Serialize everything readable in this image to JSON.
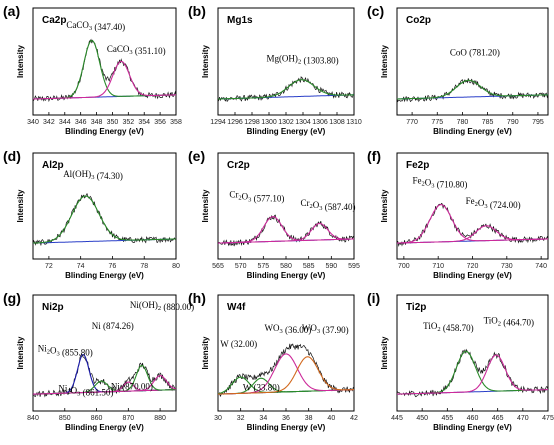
{
  "chart_data": [
    {
      "type": "line",
      "letter": "(a)",
      "element": "Ca2p",
      "xlabel": "Blinding Energy (eV)",
      "ylabel": "Intensity",
      "xlim": [
        340,
        358
      ],
      "xticks": [
        340,
        342,
        344,
        346,
        348,
        350,
        352,
        354,
        356,
        358
      ],
      "peaks": [
        {
          "pos": 347.4,
          "amp": 0.68,
          "w": 1.0,
          "color": "#2a8a2a"
        },
        {
          "pos": 351.1,
          "amp": 0.42,
          "w": 1.05,
          "color": "#cc2a9a"
        }
      ],
      "annotations": [
        {
          "text": "CaCO",
          "sub": "3",
          "val": " (347.40)",
          "x": 344.2,
          "y": 0.85
        },
        {
          "text": "CaCO",
          "sub": "3",
          "val": " (351.10)",
          "x": 349.3,
          "y": 0.56
        }
      ]
    },
    {
      "type": "line",
      "letter": "(b)",
      "element": "Mg1s",
      "xlabel": "Blinding Energy (eV)",
      "ylabel": "Intensity",
      "xlim": [
        1294,
        1310
      ],
      "xticks": [
        1294,
        1296,
        1298,
        1300,
        1302,
        1304,
        1306,
        1308,
        1310
      ],
      "peaks": [
        {
          "pos": 1303.8,
          "amp": 0.2,
          "w": 1.5,
          "color": "#2a8a2a"
        }
      ],
      "annotations": [
        {
          "text": "Mg(OH)",
          "sub": "2",
          "val": " (1303.80)",
          "x": 1299.7,
          "y": 0.45
        }
      ]
    },
    {
      "type": "line",
      "letter": "(c)",
      "element": "Co2p",
      "xlabel": "Blinding Energy (eV)",
      "ylabel": "Intensity",
      "xlim": [
        767,
        797
      ],
      "xticks": [
        770,
        775,
        780,
        785,
        790,
        795
      ],
      "peaks": [
        {
          "pos": 781.2,
          "amp": 0.2,
          "w": 2.4,
          "color": "#2a8a2a"
        }
      ],
      "annotations": [
        {
          "text": "CoO",
          "sub": "",
          "val": " (781.20)",
          "x": 777.5,
          "y": 0.52
        }
      ]
    },
    {
      "type": "line",
      "letter": "(d)",
      "element": "Al2p",
      "xlabel": "Blinding Energy (eV)",
      "ylabel": "Intensity",
      "xlim": [
        71,
        80
      ],
      "xticks": [
        72,
        74,
        76,
        78,
        80
      ],
      "peaks": [
        {
          "pos": 74.3,
          "amp": 0.55,
          "w": 0.85,
          "color": "#2a8a2a"
        }
      ],
      "annotations": [
        {
          "text": "Al(OH)",
          "sub": "3",
          "val": " (74.30)",
          "x": 72.9,
          "y": 0.8
        }
      ]
    },
    {
      "type": "line",
      "letter": "(e)",
      "element": "Cr2p",
      "xlabel": "Blinding Energy (eV)",
      "ylabel": "Intensity",
      "xlim": [
        565,
        595
      ],
      "xticks": [
        565,
        570,
        575,
        580,
        585,
        590,
        595
      ],
      "peaks": [
        {
          "pos": 577.1,
          "amp": 0.3,
          "w": 2.0,
          "color": "#cc2a9a"
        },
        {
          "pos": 587.4,
          "amp": 0.2,
          "w": 1.8,
          "color": "#cc2a9a"
        }
      ],
      "annotations": [
        {
          "text": "Cr",
          "sub": "2",
          "val": "O",
          "sub2": "3",
          "val2": " (577.10)",
          "x": 567.5,
          "y": 0.55
        },
        {
          "text": "Cr",
          "sub": "2",
          "val": "O",
          "sub2": "3",
          "val2": " (587.40)",
          "x": 583.2,
          "y": 0.45
        }
      ]
    },
    {
      "type": "line",
      "letter": "(f)",
      "element": "Fe2p",
      "xlabel": "Blinding Energy (eV)",
      "ylabel": "Intensity",
      "xlim": [
        698,
        742
      ],
      "xticks": [
        700,
        710,
        720,
        730,
        740
      ],
      "peaks": [
        {
          "pos": 710.8,
          "amp": 0.45,
          "w": 3.2,
          "color": "#cc2a9a"
        },
        {
          "pos": 724.0,
          "amp": 0.18,
          "w": 3.0,
          "color": "#cc2a9a"
        }
      ],
      "annotations": [
        {
          "text": "Fe",
          "sub": "2",
          "val": "O",
          "sub2": "3",
          "val2": " (710.80)",
          "x": 702.5,
          "y": 0.72
        },
        {
          "text": "Fe",
          "sub": "2",
          "val": "O",
          "sub2": "3",
          "val2": " (724.00)",
          "x": 718.0,
          "y": 0.47
        }
      ]
    },
    {
      "type": "line",
      "letter": "(g)",
      "element": "Ni2p",
      "xlabel": "Blinding Energy (eV)",
      "ylabel": "Intensity",
      "xlim": [
        840,
        885
      ],
      "xticks": [
        840,
        850,
        860,
        870,
        880
      ],
      "peaks": [
        {
          "pos": 855.8,
          "amp": 0.42,
          "w": 1.8,
          "color": "#1a1aaa"
        },
        {
          "pos": 861.5,
          "amp": 0.12,
          "w": 2.0,
          "color": "#2a8a2a"
        },
        {
          "pos": 870.0,
          "amp": 0.1,
          "w": 1.6,
          "color": "#cc2a9a"
        },
        {
          "pos": 874.26,
          "amp": 0.28,
          "w": 1.8,
          "color": "#2a8a2a"
        },
        {
          "pos": 880.0,
          "amp": 0.16,
          "w": 2.0,
          "color": "#cc2a9a"
        }
      ],
      "annotations": [
        {
          "text": "Ni(OH)",
          "sub": "2",
          "val": " (880.00)",
          "x": 870.5,
          "y": 0.95
        },
        {
          "text": "Ni (874.26)",
          "sub": "",
          "val": "",
          "x": 858.5,
          "y": 0.72
        },
        {
          "text": "Ni",
          "sub": "2",
          "val": "O",
          "sub2": "3",
          "val2": " (855.80)",
          "x": 841.5,
          "y": 0.47
        },
        {
          "text": "Ni",
          "sub": "2",
          "val": "O",
          "sub2": "3",
          "val2": " (861.50)",
          "x": 848.0,
          "y": 0.03
        },
        {
          "text": "Ni (870.00)",
          "sub": "",
          "val": "",
          "x": 864.5,
          "y": 0.05
        }
      ]
    },
    {
      "type": "line",
      "letter": "(h)",
      "element": "W4f",
      "xlabel": "Blinding Energy (eV)",
      "ylabel": "Intensity",
      "xlim": [
        30,
        42
      ],
      "xticks": [
        30,
        32,
        34,
        36,
        38,
        40,
        42
      ],
      "peaks": [
        {
          "pos": 32.0,
          "amp": 0.18,
          "w": 0.75,
          "color": "#2a8a2a"
        },
        {
          "pos": 33.8,
          "amp": 0.16,
          "w": 0.7,
          "color": "#2a8a2a"
        },
        {
          "pos": 36.0,
          "amp": 0.42,
          "w": 1.0,
          "color": "#cc2a9a"
        },
        {
          "pos": 37.9,
          "amp": 0.38,
          "w": 0.95,
          "color": "#d2691e"
        }
      ],
      "annotations": [
        {
          "text": "W (32.00)",
          "sub": "",
          "val": "",
          "x": 30.2,
          "y": 0.52
        },
        {
          "text": "W (33.80)",
          "sub": "",
          "val": "",
          "x": 32.2,
          "y": 0.04
        },
        {
          "text": "WO",
          "sub": "3",
          "val": " (36.00)",
          "x": 34.1,
          "y": 0.7
        },
        {
          "text": "WO",
          "sub": "3",
          "val": " (37.90)",
          "x": 37.4,
          "y": 0.7
        }
      ]
    },
    {
      "type": "line",
      "letter": "(i)",
      "element": "Ti2p",
      "xlabel": "Blinding Energy (eV)",
      "ylabel": "Intensity",
      "xlim": [
        445,
        475
      ],
      "xticks": [
        445,
        450,
        455,
        460,
        465,
        470,
        475
      ],
      "peaks": [
        {
          "pos": 458.7,
          "amp": 0.45,
          "w": 1.9,
          "color": "#2a8a2a"
        },
        {
          "pos": 464.7,
          "amp": 0.4,
          "w": 1.8,
          "color": "#cc2a9a"
        }
      ],
      "annotations": [
        {
          "text": "TiO",
          "sub": "2",
          "val": " (458.70)",
          "x": 450.2,
          "y": 0.72
        },
        {
          "text": "TiO",
          "sub": "2",
          "val": " (464.70)",
          "x": 462.2,
          "y": 0.78
        }
      ]
    }
  ]
}
